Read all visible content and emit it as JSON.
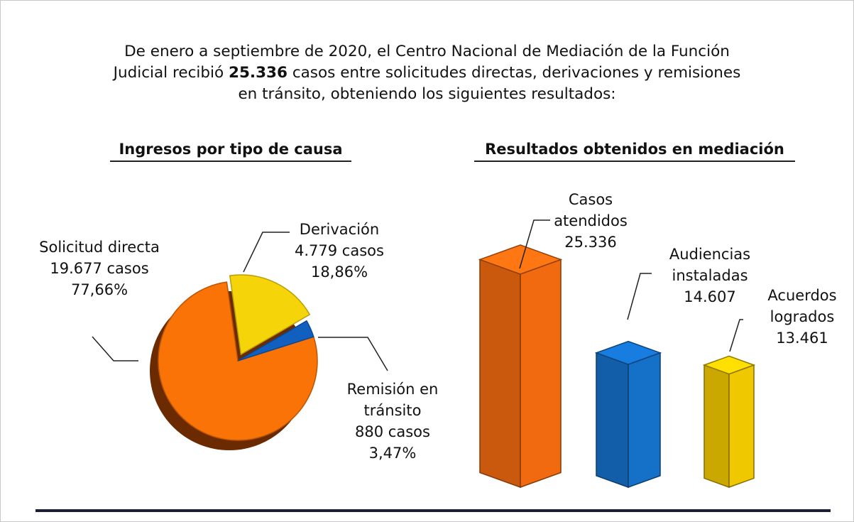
{
  "header": {
    "line1": "De enero a septiembre de 2020, el Centro Nacional de Mediación de la Función",
    "line2_before": "Judicial recibió",
    "bold": "25.336",
    "line2_after": "casos entre solicitudes directas, derivaciones y remisiones",
    "line3": "en tránsito, obteniendo los siguientes resultados:"
  },
  "chart_data": [
    {
      "type": "pie",
      "title": "Ingresos por tipo de causa",
      "categories": [
        "Solicitud directa",
        "Derivación",
        "Remisión en tránsito"
      ],
      "values": [
        77.66,
        18.86,
        3.47
      ],
      "value_labels": [
        "77,66%",
        "18,86%",
        "3,47%"
      ],
      "counts": [
        19677,
        4779,
        880
      ],
      "count_labels": [
        "19.677 casos",
        "4.779 casos",
        "880 casos"
      ],
      "colors": [
        "#f97306",
        "#f5d40a",
        "#1160c0"
      ]
    },
    {
      "type": "bar",
      "title": "Resultados obtenidos en mediación",
      "categories": [
        "Casos atendidos",
        "Audiencias instaladas",
        "Acuerdos logrados"
      ],
      "values": [
        25336,
        14607,
        13461
      ],
      "value_labels": [
        "25.336",
        "14.607",
        "13.461"
      ],
      "colors": [
        "#f26a10",
        "#1570c8",
        "#f0c800"
      ]
    }
  ]
}
